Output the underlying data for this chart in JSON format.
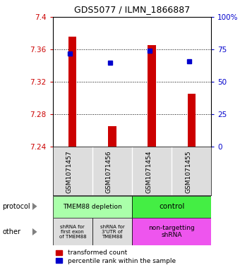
{
  "title": "GDS5077 / ILMN_1866887",
  "samples": [
    "GSM1071457",
    "GSM1071456",
    "GSM1071454",
    "GSM1071455"
  ],
  "bar_bottoms": [
    7.24,
    7.24,
    7.24,
    7.24
  ],
  "bar_tops": [
    7.375,
    7.265,
    7.365,
    7.305
  ],
  "blue_y": [
    7.355,
    7.343,
    7.358,
    7.345
  ],
  "ylim": [
    7.24,
    7.4
  ],
  "yticks_left": [
    7.24,
    7.28,
    7.32,
    7.36,
    7.4
  ],
  "yticks_right": [
    0,
    25,
    50,
    75,
    100
  ],
  "ytick_labels_right": [
    "0",
    "25",
    "50",
    "75",
    "100%"
  ],
  "bar_color": "#cc0000",
  "blue_color": "#0000cc",
  "protocol_labels": [
    "TMEM88 depletion",
    "control"
  ],
  "protocol_color_left": "#aaffaa",
  "protocol_color_right": "#44ee44",
  "other_labels": [
    "shRNA for\nfirst exon\nof TMEM88",
    "shRNA for\n3'UTR of\nTMEM88",
    "non-targetting\nshRNA"
  ],
  "other_color_left": "#dddddd",
  "other_color_right": "#ee55ee",
  "legend_red_label": "transformed count",
  "legend_blue_label": "percentile rank within the sample",
  "left_label_protocol": "protocol",
  "left_label_other": "other",
  "tick_color_left": "#cc0000",
  "tick_color_right": "#0000cc",
  "figsize": [
    3.4,
    3.93
  ],
  "dpi": 100
}
